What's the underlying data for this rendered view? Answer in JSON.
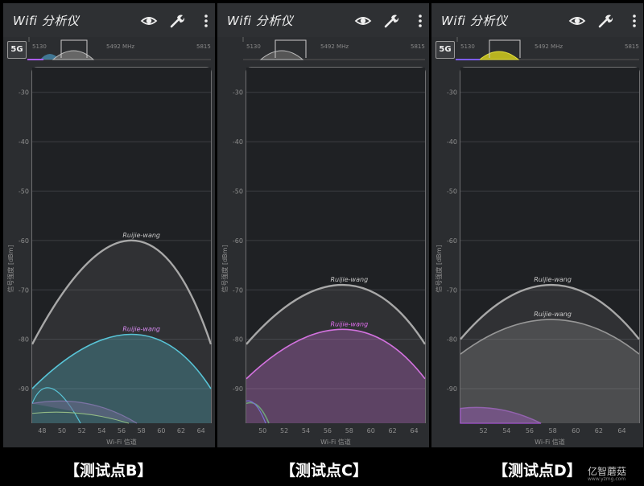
{
  "app": {
    "title": "Wifi 分析仪",
    "band_button": "5G"
  },
  "icons": {
    "eye": "eye-icon",
    "wrench": "wrench-icon",
    "menu": "more-vert-icon"
  },
  "mini_axis": {
    "left": "5130",
    "center": "5492 MHz",
    "right": "5815"
  },
  "axes": {
    "ylabel": "信号强度 [dBm]",
    "xlabel": "Wi-Fi 信道",
    "y_ticks": [
      "-30",
      "-40",
      "-50",
      "-60",
      "-70",
      "-80",
      "-90"
    ],
    "x_ticks_b": [
      "48",
      "50",
      "52",
      "54",
      "56",
      "58",
      "60",
      "62",
      "64"
    ],
    "x_ticks_c": [
      "50",
      "52",
      "54",
      "56",
      "58",
      "60",
      "62",
      "64"
    ],
    "x_ticks_d": [
      "52",
      "54",
      "56",
      "58",
      "60",
      "62",
      "64"
    ]
  },
  "panels": [
    {
      "caption": "【测试点B】",
      "labels": {
        "gray": "Ruijie-wang",
        "colored": "Ruijie-wang"
      },
      "chart_data": {
        "type": "area",
        "x_range": [
          47,
          65
        ],
        "y_range": [
          -25,
          -97
        ],
        "series": [
          {
            "name": "Ruijie-wang",
            "color": "#aaaaaa",
            "peak_x": 58,
            "peak_y": -60,
            "edge_y": -81
          },
          {
            "name": "Ruijie-wang",
            "color": "#4fd0e6",
            "peak_x": 58,
            "peak_y": -79,
            "edge_y": -90
          }
        ]
      }
    },
    {
      "caption": "【测试点C】",
      "labels": {
        "gray": "Ruijie-wang",
        "colored": "Ruijie-wang"
      },
      "chart_data": {
        "type": "area",
        "x_range": [
          48.5,
          65
        ],
        "y_range": [
          -25,
          -97
        ],
        "series": [
          {
            "name": "Ruijie-wang",
            "color": "#aaaaaa",
            "peak_x": 58,
            "peak_y": -69,
            "edge_y": -81
          },
          {
            "name": "Ruijie-wang",
            "color": "#e26ef0",
            "peak_x": 58,
            "peak_y": -78,
            "edge_y": -88
          }
        ]
      }
    },
    {
      "caption": "【测试点D】",
      "labels": {
        "gray": "Ruijie-wang",
        "colored": "Ruijie-wang"
      },
      "chart_data": {
        "type": "area",
        "x_range": [
          50,
          65.5
        ],
        "y_range": [
          -25,
          -97
        ],
        "series": [
          {
            "name": "Ruijie-wang",
            "color": "#aaaaaa",
            "peak_x": 58,
            "peak_y": -69,
            "edge_y": -80
          },
          {
            "name": "Ruijie-wang",
            "color": "#9a9a9a",
            "peak_x": 58,
            "peak_y": -76,
            "edge_y": -83
          }
        ]
      }
    }
  ],
  "watermark": {
    "text": "亿智蘑菇",
    "sub": "www.yzmg.com"
  }
}
